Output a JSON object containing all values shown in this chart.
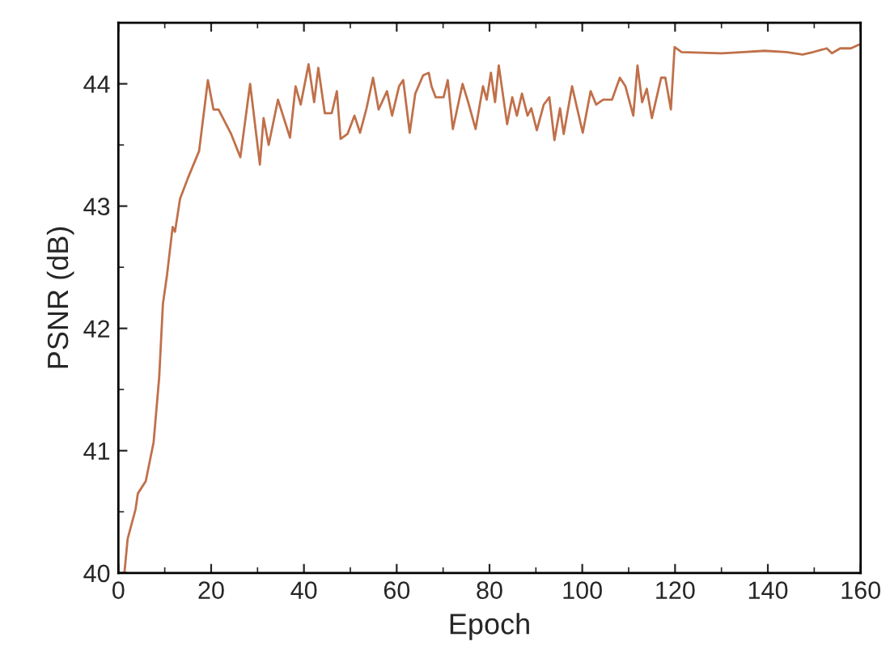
{
  "chart_data": {
    "type": "line",
    "xlabel": "Epoch",
    "ylabel": "PSNR (dB)",
    "xlim": [
      0,
      160
    ],
    "ylim": [
      40,
      44.5
    ],
    "xticks": [
      0,
      20,
      40,
      60,
      80,
      100,
      120,
      140,
      160
    ],
    "yticks": [
      40,
      41,
      42,
      43,
      44
    ],
    "grid": false,
    "marker": "none",
    "line_style": "solid",
    "series": [
      {
        "color": "#c0704a",
        "x": [
          1.3,
          2.0,
          3.7,
          4.2,
          5.9,
          7.6,
          8.8,
          9.6,
          10.5,
          11.7,
          12.2,
          13.3,
          15,
          17.4,
          19.3,
          20.5,
          21.6,
          24.3,
          26.3,
          28.4,
          30.5,
          31.3,
          32.4,
          34.4,
          37,
          38.2,
          39.3,
          41,
          42.2,
          43.1,
          44.5,
          46,
          47.1,
          47.9,
          49.4,
          50.9,
          52.1,
          53.5,
          54.9,
          56.1,
          57.9,
          59,
          60.5,
          61.4,
          62.8,
          64,
          65.7,
          66.9,
          67.5,
          68.4,
          70.1,
          71,
          72.1,
          74.2,
          75.4,
          77,
          78.6,
          79.4,
          80.3,
          81.2,
          82,
          83.8,
          84.9,
          85.9,
          87,
          88.2,
          89,
          90.2,
          91.7,
          92.9,
          94,
          95.2,
          96,
          97.8,
          100.1,
          101.8,
          103,
          104.5,
          106.4,
          108.1,
          109.3,
          111,
          111.9,
          112.9,
          113.9,
          115,
          117,
          117.9,
          119.1,
          119.9,
          121.4,
          130,
          134.7,
          139.3,
          144,
          147.5,
          149.8,
          152.7,
          153.8,
          155.6,
          157.9,
          159.6
        ],
        "values": [
          40.0,
          40.28,
          40.52,
          40.65,
          40.75,
          41.07,
          41.6,
          42.2,
          42.44,
          42.83,
          42.79,
          43.06,
          43.23,
          43.45,
          44.03,
          43.79,
          43.79,
          43.59,
          43.4,
          44.0,
          43.34,
          43.72,
          43.5,
          43.87,
          43.56,
          43.98,
          43.83,
          44.16,
          43.85,
          44.13,
          43.76,
          43.76,
          43.94,
          43.55,
          43.59,
          43.74,
          43.6,
          43.8,
          44.05,
          43.79,
          43.94,
          43.74,
          43.98,
          44.03,
          43.6,
          43.92,
          44.07,
          44.09,
          43.98,
          43.89,
          43.89,
          44.03,
          43.63,
          44.0,
          43.85,
          43.63,
          43.98,
          43.87,
          44.09,
          43.85,
          44.15,
          43.67,
          43.89,
          43.74,
          43.92,
          43.74,
          43.8,
          43.62,
          43.83,
          43.89,
          43.54,
          43.8,
          43.59,
          43.98,
          43.6,
          43.94,
          43.83,
          43.87,
          43.87,
          44.05,
          43.98,
          43.74,
          44.15,
          43.85,
          43.96,
          43.72,
          44.05,
          44.05,
          43.79,
          44.3,
          44.26,
          44.25,
          44.26,
          44.27,
          44.26,
          44.24,
          44.26,
          44.29,
          44.25,
          44.29,
          44.29,
          44.32
        ]
      }
    ]
  }
}
